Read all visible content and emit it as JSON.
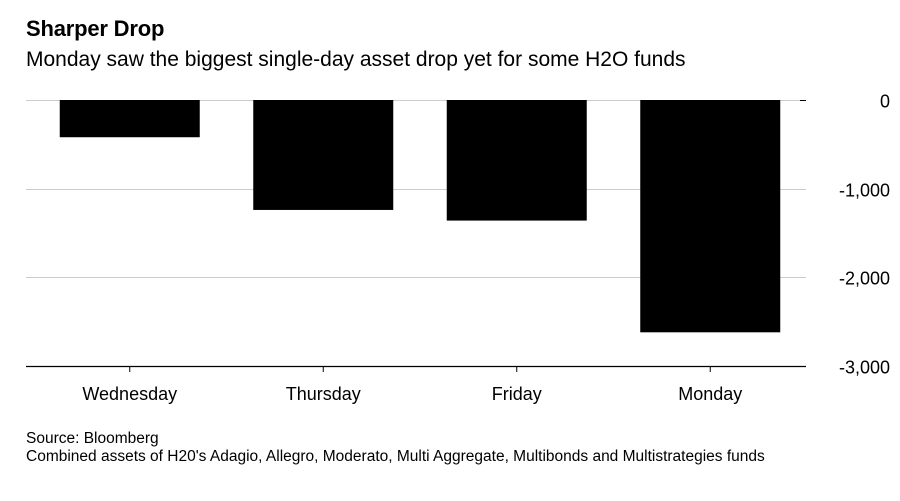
{
  "title": "Sharper Drop",
  "subtitle": "Monday saw the biggest single-day asset drop yet for some H2O funds",
  "source": "Source: Bloomberg",
  "note": "Combined assets of H20's Adagio, Allegro, Moderato, Multi Aggregate, Multibonds and Multistrategies funds",
  "chart_data": {
    "type": "bar",
    "categories": [
      "Wednesday",
      "Thursday",
      "Friday",
      "Monday"
    ],
    "values": [
      -420,
      -1240,
      -1360,
      -2620
    ],
    "ylim": [
      -3000,
      0
    ],
    "yticks": [
      0,
      -1000,
      -2000,
      -3000
    ],
    "ytick_labels": [
      "0",
      "-1,000",
      "-2,000",
      "-3,000"
    ],
    "grid": true,
    "bar_color": "#000000",
    "grid_color": "#cccccc"
  }
}
